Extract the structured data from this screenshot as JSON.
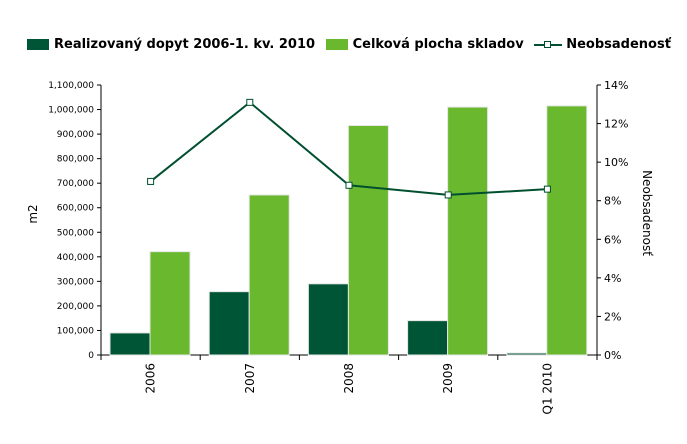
{
  "chart_data": {
    "type": "bar",
    "categories": [
      "2006",
      "2007",
      "2008",
      "2009",
      "Q1 2010"
    ],
    "series": [
      {
        "name": "Realizovaný dopyt 2006-1. kv. 2010",
        "kind": "bar",
        "axis": "left",
        "color": "#005537",
        "values": [
          90000,
          258000,
          290000,
          140000,
          8000
        ]
      },
      {
        "name": "Celková plocha skladov",
        "kind": "bar",
        "axis": "left",
        "color": "#6ab82e",
        "values": [
          421000,
          652000,
          935000,
          1010000,
          1015000
        ]
      },
      {
        "name": "Neobsadenosť",
        "kind": "line",
        "axis": "right",
        "color": "#005030",
        "values": [
          9.0,
          13.1,
          8.8,
          8.3,
          8.6
        ]
      }
    ],
    "ylabel": "m2",
    "y2label": "Neobsadenosť",
    "ylim": [
      0,
      1100000
    ],
    "y2lim": [
      0,
      14
    ],
    "yticks": [
      "0",
      "100,000",
      "200,000",
      "300,000",
      "400,000",
      "500,000",
      "600,000",
      "700,000",
      "800,000",
      "900,000",
      "1,000,000",
      "1,100,000"
    ],
    "y2ticks": [
      "0%",
      "2%",
      "4%",
      "6%",
      "8%",
      "10%",
      "12%",
      "14%"
    ],
    "legend_position": "top",
    "grid": false
  }
}
